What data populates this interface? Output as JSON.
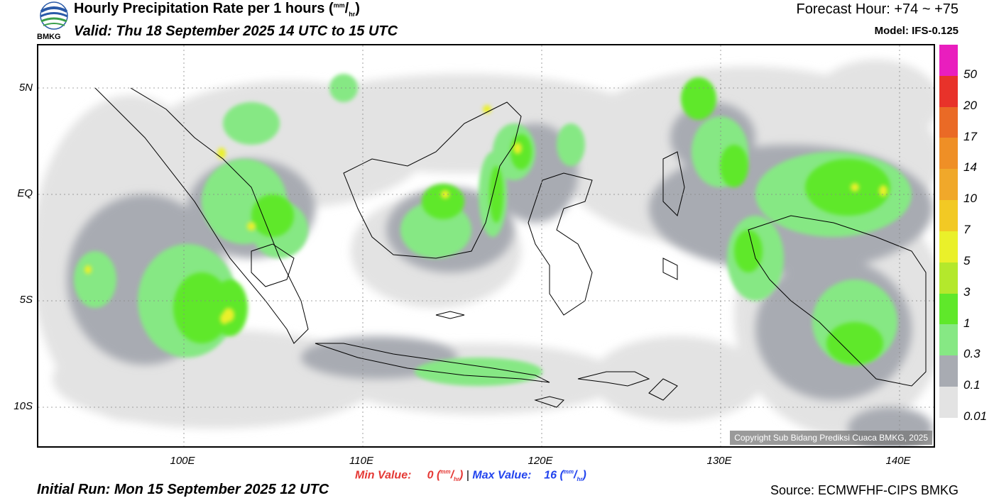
{
  "header": {
    "title": "Hourly Precipitation Rate per 1 hours (",
    "title_unit_num": "mm",
    "title_unit_den": "hr",
    "title_close": ")",
    "valid": "Valid: Thu 18 September 2025 14 UTC to 15 UTC",
    "forecast_hour": "Forecast Hour: +74 ~ +75",
    "model": "Model: IFS-0.125",
    "logo_text": "BMKG"
  },
  "axes": {
    "y_labels": [
      "5N",
      "EQ",
      "5S",
      "10S"
    ],
    "x_labels": [
      "100E",
      "110E",
      "120E",
      "130E",
      "140E"
    ]
  },
  "map": {
    "copyright": "Copyright Sub Bidang Prediksi Cuaca BMKG, 2025"
  },
  "colorbar": {
    "levels": [
      "50",
      "20",
      "17",
      "14",
      "10",
      "7",
      "5",
      "3",
      "1",
      "0.3",
      "0.1",
      "0.01"
    ],
    "colors": [
      "#e91ebe",
      "#e8322a",
      "#ea6a26",
      "#ef8f26",
      "#f0a82a",
      "#f2c924",
      "#eaf02a",
      "#b4e82c",
      "#5fe82a",
      "#86e884",
      "#a8abb2",
      "#e3e3e3"
    ]
  },
  "footer": {
    "min_label": "Min Value:",
    "min_value": "0",
    "max_label": "Max Value:",
    "max_value": "16",
    "unit_num": "mm",
    "unit_den": "hr",
    "separator": "|",
    "initial_run": "Initial Run: Mon 15 September 2025 12 UTC",
    "source": "Source: ECMWFHF-CIPS BMKG"
  }
}
